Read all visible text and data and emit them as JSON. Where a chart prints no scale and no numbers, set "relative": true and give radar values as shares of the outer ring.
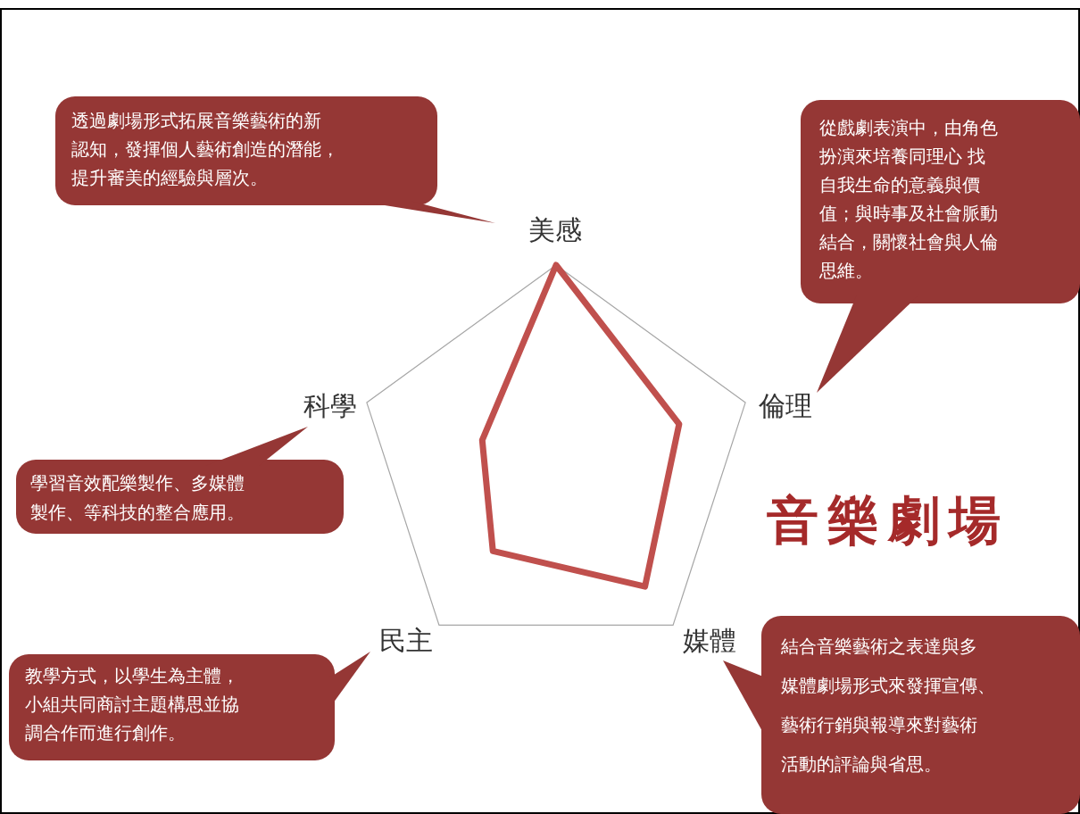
{
  "chart_data": {
    "type": "radar",
    "title": "音樂劇場",
    "categories": [
      "美感",
      "倫理",
      "媒體",
      "民主",
      "科學"
    ],
    "relative": true,
    "grid": true,
    "series": [
      {
        "color": "#c0504d",
        "values": [
          1,
          0.65,
          0.76,
          0.54,
          0.39
        ]
      }
    ],
    "annotations": [
      "透過劇場形式拓展音樂藝術的新認知，發揮個人藝術創造的潛能，提升審美的經驗與層次。",
      "從戲劇表演中，由角色扮演來培養同理心 找自我生命的意義與價值；與時事及社會脈動結合，關懷社會與人倫思維。",
      "結合音樂藝術之表達與多媒體劇場形式來發揮宣傳、藝術行銷與報導來對藝術活動的評論與省思。",
      "教學方式，以學生為主體，小組共同商討主題構思並協調合作而進行創作。",
      "學習音效配樂製作、多媒體製作、等科技的整合應用。"
    ]
  }
}
